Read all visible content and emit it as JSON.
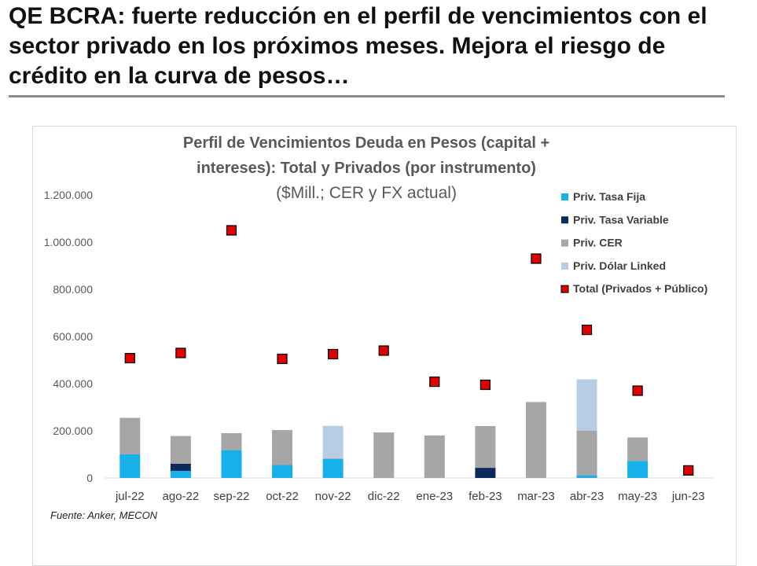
{
  "headline": "QE BCRA: fuerte reducción en el perfil de vencimientos con el sector privado en los próximos meses. Mejora el riesgo de crédito en la curva de pesos…",
  "chart_data": {
    "type": "bar",
    "stacked": true,
    "title_line1": "Perfil de Vencimientos Deuda en Pesos (capital +",
    "title_line2": "intereses): Total y Privados (por instrumento)",
    "subtitle": "($Mill.; CER y FX actual)",
    "categories": [
      "jul-22",
      "ago-22",
      "sep-22",
      "oct-22",
      "nov-22",
      "dic-22",
      "ene-23",
      "feb-23",
      "mar-23",
      "abr-23",
      "may-23",
      "jun-23"
    ],
    "ylim": [
      0,
      1200000
    ],
    "yticks": [
      0,
      200000,
      400000,
      600000,
      800000,
      1000000,
      1200000
    ],
    "ytick_labels": [
      "0",
      "200.000",
      "400.000",
      "600.000",
      "800.000",
      "1.000.000",
      "1.200.000"
    ],
    "series": [
      {
        "name": "Priv. Tasa Fija",
        "color": "#16b1ea",
        "values": [
          100000,
          30000,
          118000,
          55000,
          80000,
          0,
          0,
          0,
          0,
          10000,
          72000,
          0
        ]
      },
      {
        "name": "Priv. Tasa Variable",
        "color": "#0b2a5c",
        "values": [
          0,
          30000,
          0,
          0,
          0,
          0,
          0,
          43000,
          0,
          0,
          0,
          0
        ]
      },
      {
        "name": "Priv. CER",
        "color": "#a6a6a6",
        "values": [
          155000,
          118000,
          72000,
          148000,
          3000,
          193000,
          180000,
          177000,
          322000,
          190000,
          100000,
          0
        ]
      },
      {
        "name": "Priv. Dólar Linked",
        "color": "#b8cce4",
        "values": [
          0,
          0,
          0,
          0,
          138000,
          0,
          0,
          0,
          0,
          218000,
          0,
          0
        ]
      }
    ],
    "total": {
      "name": "Total (Privados + Público)",
      "color": "#e00000",
      "values": [
        508000,
        530000,
        1050000,
        505000,
        525000,
        540000,
        408000,
        395000,
        930000,
        628000,
        370000,
        32000
      ]
    },
    "legend_position": "top-right",
    "source": "Fuente: Anker, MECON"
  }
}
